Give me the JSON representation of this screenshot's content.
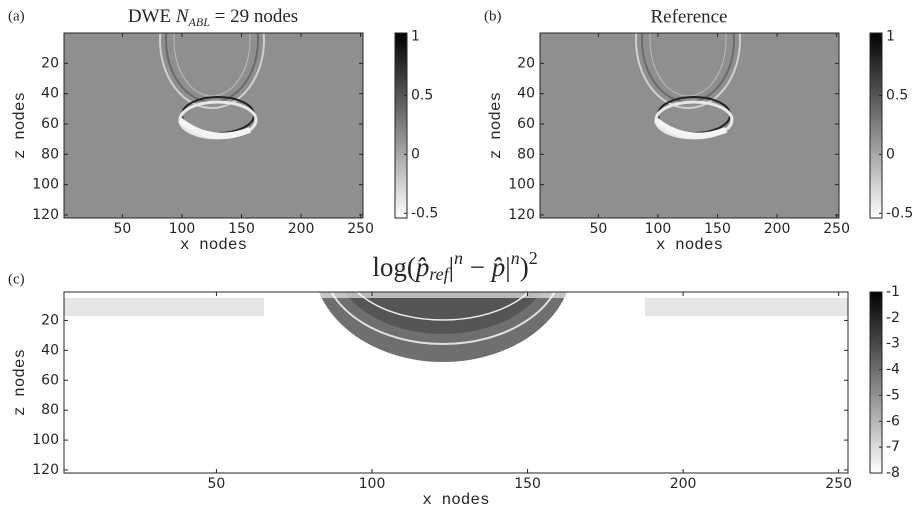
{
  "chart_data": [
    {
      "type": "image",
      "panel_label": "(a)",
      "title": [
        "DWE ",
        "N",
        "ABL",
        " = 29 nodes"
      ],
      "xlabel": "x nodes",
      "ylabel": "z nodes",
      "xlim": [
        1,
        252
      ],
      "ylim": [
        0,
        122
      ],
      "y_reversed": true,
      "xticks": [
        50,
        100,
        150,
        200,
        250
      ],
      "yticks": [
        20,
        40,
        60,
        80,
        100,
        120
      ],
      "colormap": "gray",
      "clim": [
        -0.54,
        1.03
      ],
      "cticks": [
        -0.5,
        0,
        0.5,
        1
      ]
    },
    {
      "type": "image",
      "panel_label": "(b)",
      "title": [
        "Reference"
      ],
      "xlabel": "x nodes",
      "ylabel": "z nodes",
      "xlim": [
        1,
        252
      ],
      "ylim": [
        0,
        122
      ],
      "y_reversed": true,
      "xticks": [
        50,
        100,
        150,
        200,
        250
      ],
      "yticks": [
        20,
        40,
        60,
        80,
        100,
        120
      ],
      "colormap": "gray",
      "clim": [
        -0.54,
        1.03
      ],
      "cticks": [
        -0.5,
        0,
        0.5,
        1
      ]
    },
    {
      "type": "image",
      "panel_label": "(c)",
      "title": [
        "log(",
        "p̂",
        "ref",
        "|",
        "n",
        " − ",
        "p̂",
        "|",
        "n",
        ")",
        "2"
      ],
      "xlabel": "x nodes",
      "ylabel": "z nodes",
      "xlim": [
        1,
        253
      ],
      "ylim": [
        1,
        122
      ],
      "y_reversed": true,
      "xticks": [
        50,
        100,
        150,
        200,
        250
      ],
      "yticks": [
        20,
        40,
        60,
        80,
        100,
        120
      ],
      "colormap": "gray",
      "clim": [
        -8,
        -1
      ],
      "cticks": [
        -1,
        -2,
        -3,
        -4,
        -5,
        -6,
        -7,
        -8
      ]
    }
  ]
}
